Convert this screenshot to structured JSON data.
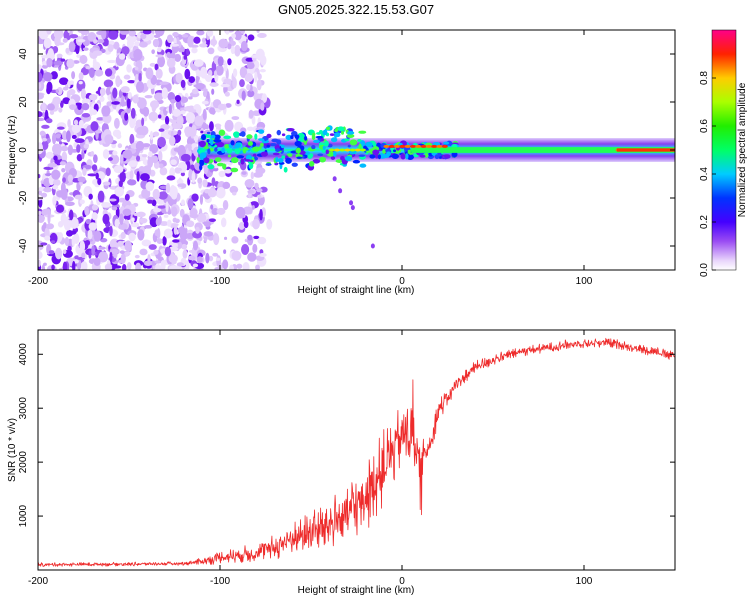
{
  "title": "GN05.2025.322.15.53.G07",
  "colors": {
    "snr_line": "#ee2b2b",
    "axis": "#000000",
    "background": "#ffffff"
  },
  "chart_data": [
    {
      "type": "heatmap",
      "name": "spectrogram",
      "xlabel": "Height of straight line (km)",
      "ylabel": "Frequency (Hz)",
      "xlim": [
        -200,
        150
      ],
      "ylim": [
        -50,
        50
      ],
      "x_ticks": [
        -200,
        -100,
        0,
        100
      ],
      "x_tick_labels": [
        "-200",
        "-100",
        "0",
        "100"
      ],
      "y_ticks": [
        -40,
        -20,
        0,
        20,
        40
      ],
      "y_tick_labels": [
        "-40",
        "-20",
        "0",
        "20",
        "40"
      ],
      "colorbar": {
        "label": "Normalized spectral amplitude",
        "range": [
          0,
          1
        ],
        "ticks": [
          0.0,
          0.2,
          0.4,
          0.6,
          0.8
        ],
        "tick_labels": [
          "0.0",
          "0.2",
          "0.4",
          "0.6",
          "0.8"
        ],
        "colormap": "rainbow (violet-blue-cyan-green-yellow-red-magenta)"
      },
      "description": "Diffuse low-amplitude noise for heights -200 to -80 km; a narrow band near 0 Hz strengthening from -110 km to 150 km, peak amplitude near 0 to 20 km and above 120 km",
      "band": {
        "x_start": -112,
        "x_end": 150,
        "center_hz": 0,
        "peak_regions_x": [
          [
            -40,
            -20
          ],
          [
            -10,
            25
          ],
          [
            118,
            150
          ]
        ]
      }
    },
    {
      "type": "line",
      "name": "snr",
      "xlabel": "Height of straight line (km)",
      "ylabel": "SNR (10 * v/v)",
      "xlim": [
        -200,
        150
      ],
      "ylim": [
        0,
        4450
      ],
      "x_ticks": [
        -200,
        -100,
        0,
        100
      ],
      "x_tick_labels": [
        "-200",
        "-100",
        "0",
        "100"
      ],
      "y_ticks": [
        1000,
        2000,
        3000,
        4000
      ],
      "y_tick_labels": [
        "1000",
        "2000",
        "3000",
        "4000"
      ],
      "series": [
        {
          "name": "SNR",
          "color": "#ee2b2b",
          "x": [
            -200,
            -150,
            -120,
            -110,
            -100,
            -90,
            -80,
            -70,
            -60,
            -50,
            -40,
            -30,
            -20,
            -10,
            0,
            5,
            10,
            15,
            20,
            30,
            40,
            50,
            60,
            70,
            80,
            90,
            100,
            110,
            120,
            130,
            140,
            150
          ],
          "y": [
            100,
            110,
            120,
            160,
            230,
            280,
            320,
            420,
            600,
            700,
            850,
            1050,
            1350,
            1900,
            2500,
            2500,
            2000,
            2300,
            2950,
            3450,
            3750,
            3900,
            4000,
            4080,
            4120,
            4180,
            4200,
            4220,
            4180,
            4100,
            4050,
            3950
          ],
          "noise": [
            60,
            60,
            60,
            120,
            200,
            250,
            300,
            400,
            550,
            650,
            800,
            950,
            1100,
            1200,
            1000,
            1000,
            600,
            450,
            350,
            250,
            200,
            180,
            160,
            150,
            150,
            150,
            150,
            150,
            150,
            150,
            150,
            150
          ]
        }
      ]
    }
  ]
}
